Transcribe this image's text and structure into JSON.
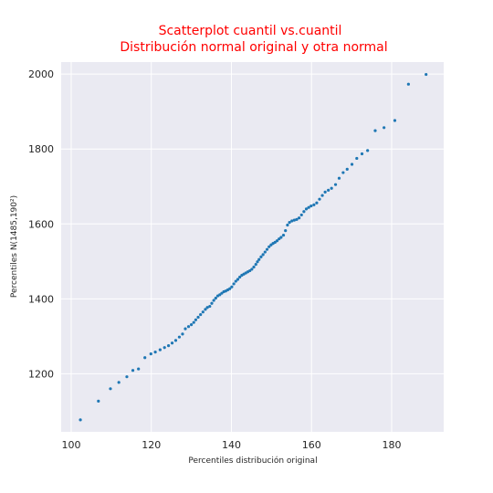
{
  "chart_data": {
    "type": "scatter",
    "title": [
      "Scatterplot cuantil vs.cuantil",
      "Distribución normal original y otra normal"
    ],
    "xlabel": "Percentiles distribución original",
    "ylabel": "Percentiles N(1485,190²)",
    "xlim": [
      97.5,
      193
    ],
    "ylim": [
      1045,
      2032
    ],
    "xticks": [
      100,
      120,
      140,
      160,
      180
    ],
    "yticks": [
      1200,
      1400,
      1600,
      1800,
      2000
    ],
    "grid": true,
    "series": [
      {
        "points": [
          [
            102.3,
            1077
          ],
          [
            106.8,
            1127
          ],
          [
            109.8,
            1160
          ],
          [
            111.9,
            1177
          ],
          [
            113.9,
            1192
          ],
          [
            115.4,
            1209
          ],
          [
            116.8,
            1213
          ],
          [
            118.4,
            1243
          ],
          [
            119.9,
            1253
          ],
          [
            121.0,
            1258
          ],
          [
            122.2,
            1264
          ],
          [
            123.3,
            1270
          ],
          [
            124.3,
            1275
          ],
          [
            125.2,
            1282
          ],
          [
            126.1,
            1289
          ],
          [
            127.0,
            1298
          ],
          [
            127.8,
            1306
          ],
          [
            128.5,
            1320
          ],
          [
            129.3,
            1326
          ],
          [
            130.0,
            1331
          ],
          [
            130.6,
            1337
          ],
          [
            131.1,
            1344
          ],
          [
            131.7,
            1351
          ],
          [
            132.3,
            1358
          ],
          [
            132.9,
            1365
          ],
          [
            133.5,
            1372
          ],
          [
            134.0,
            1377
          ],
          [
            134.6,
            1380
          ],
          [
            135.1,
            1388
          ],
          [
            135.6,
            1396
          ],
          [
            136.1,
            1402
          ],
          [
            136.6,
            1408
          ],
          [
            137.1,
            1411
          ],
          [
            137.6,
            1415
          ],
          [
            138.1,
            1419
          ],
          [
            138.6,
            1421
          ],
          [
            139.1,
            1424
          ],
          [
            139.6,
            1427
          ],
          [
            140.1,
            1432
          ],
          [
            140.6,
            1440
          ],
          [
            141.1,
            1447
          ],
          [
            141.6,
            1452
          ],
          [
            142.1,
            1458
          ],
          [
            142.6,
            1463
          ],
          [
            143.1,
            1466
          ],
          [
            143.6,
            1469
          ],
          [
            144.1,
            1472
          ],
          [
            144.6,
            1475
          ],
          [
            145.1,
            1479
          ],
          [
            145.6,
            1485
          ],
          [
            146.1,
            1492
          ],
          [
            146.5,
            1499
          ],
          [
            146.9,
            1505
          ],
          [
            147.4,
            1512
          ],
          [
            147.9,
            1518
          ],
          [
            148.4,
            1525
          ],
          [
            148.9,
            1532
          ],
          [
            149.4,
            1539
          ],
          [
            149.9,
            1544
          ],
          [
            150.4,
            1548
          ],
          [
            150.9,
            1551
          ],
          [
            151.4,
            1555
          ],
          [
            151.9,
            1560
          ],
          [
            152.4,
            1564
          ],
          [
            153.0,
            1570
          ],
          [
            153.5,
            1582
          ],
          [
            154.0,
            1597
          ],
          [
            154.5,
            1604
          ],
          [
            155.1,
            1608
          ],
          [
            155.7,
            1610
          ],
          [
            156.3,
            1612
          ],
          [
            156.9,
            1616
          ],
          [
            157.5,
            1624
          ],
          [
            158.1,
            1633
          ],
          [
            158.7,
            1640
          ],
          [
            159.3,
            1644
          ],
          [
            159.9,
            1648
          ],
          [
            160.6,
            1651
          ],
          [
            161.3,
            1656
          ],
          [
            162.0,
            1666
          ],
          [
            162.7,
            1676
          ],
          [
            163.4,
            1685
          ],
          [
            164.2,
            1690
          ],
          [
            165.0,
            1695
          ],
          [
            166.0,
            1705
          ],
          [
            166.9,
            1722
          ],
          [
            167.9,
            1737
          ],
          [
            168.9,
            1746
          ],
          [
            170.1,
            1759
          ],
          [
            171.3,
            1775
          ],
          [
            172.6,
            1787
          ],
          [
            174.0,
            1796
          ],
          [
            175.9,
            1849
          ],
          [
            178.1,
            1857
          ],
          [
            180.8,
            1876
          ],
          [
            184.2,
            1973
          ],
          [
            188.6,
            1999
          ]
        ]
      }
    ]
  }
}
